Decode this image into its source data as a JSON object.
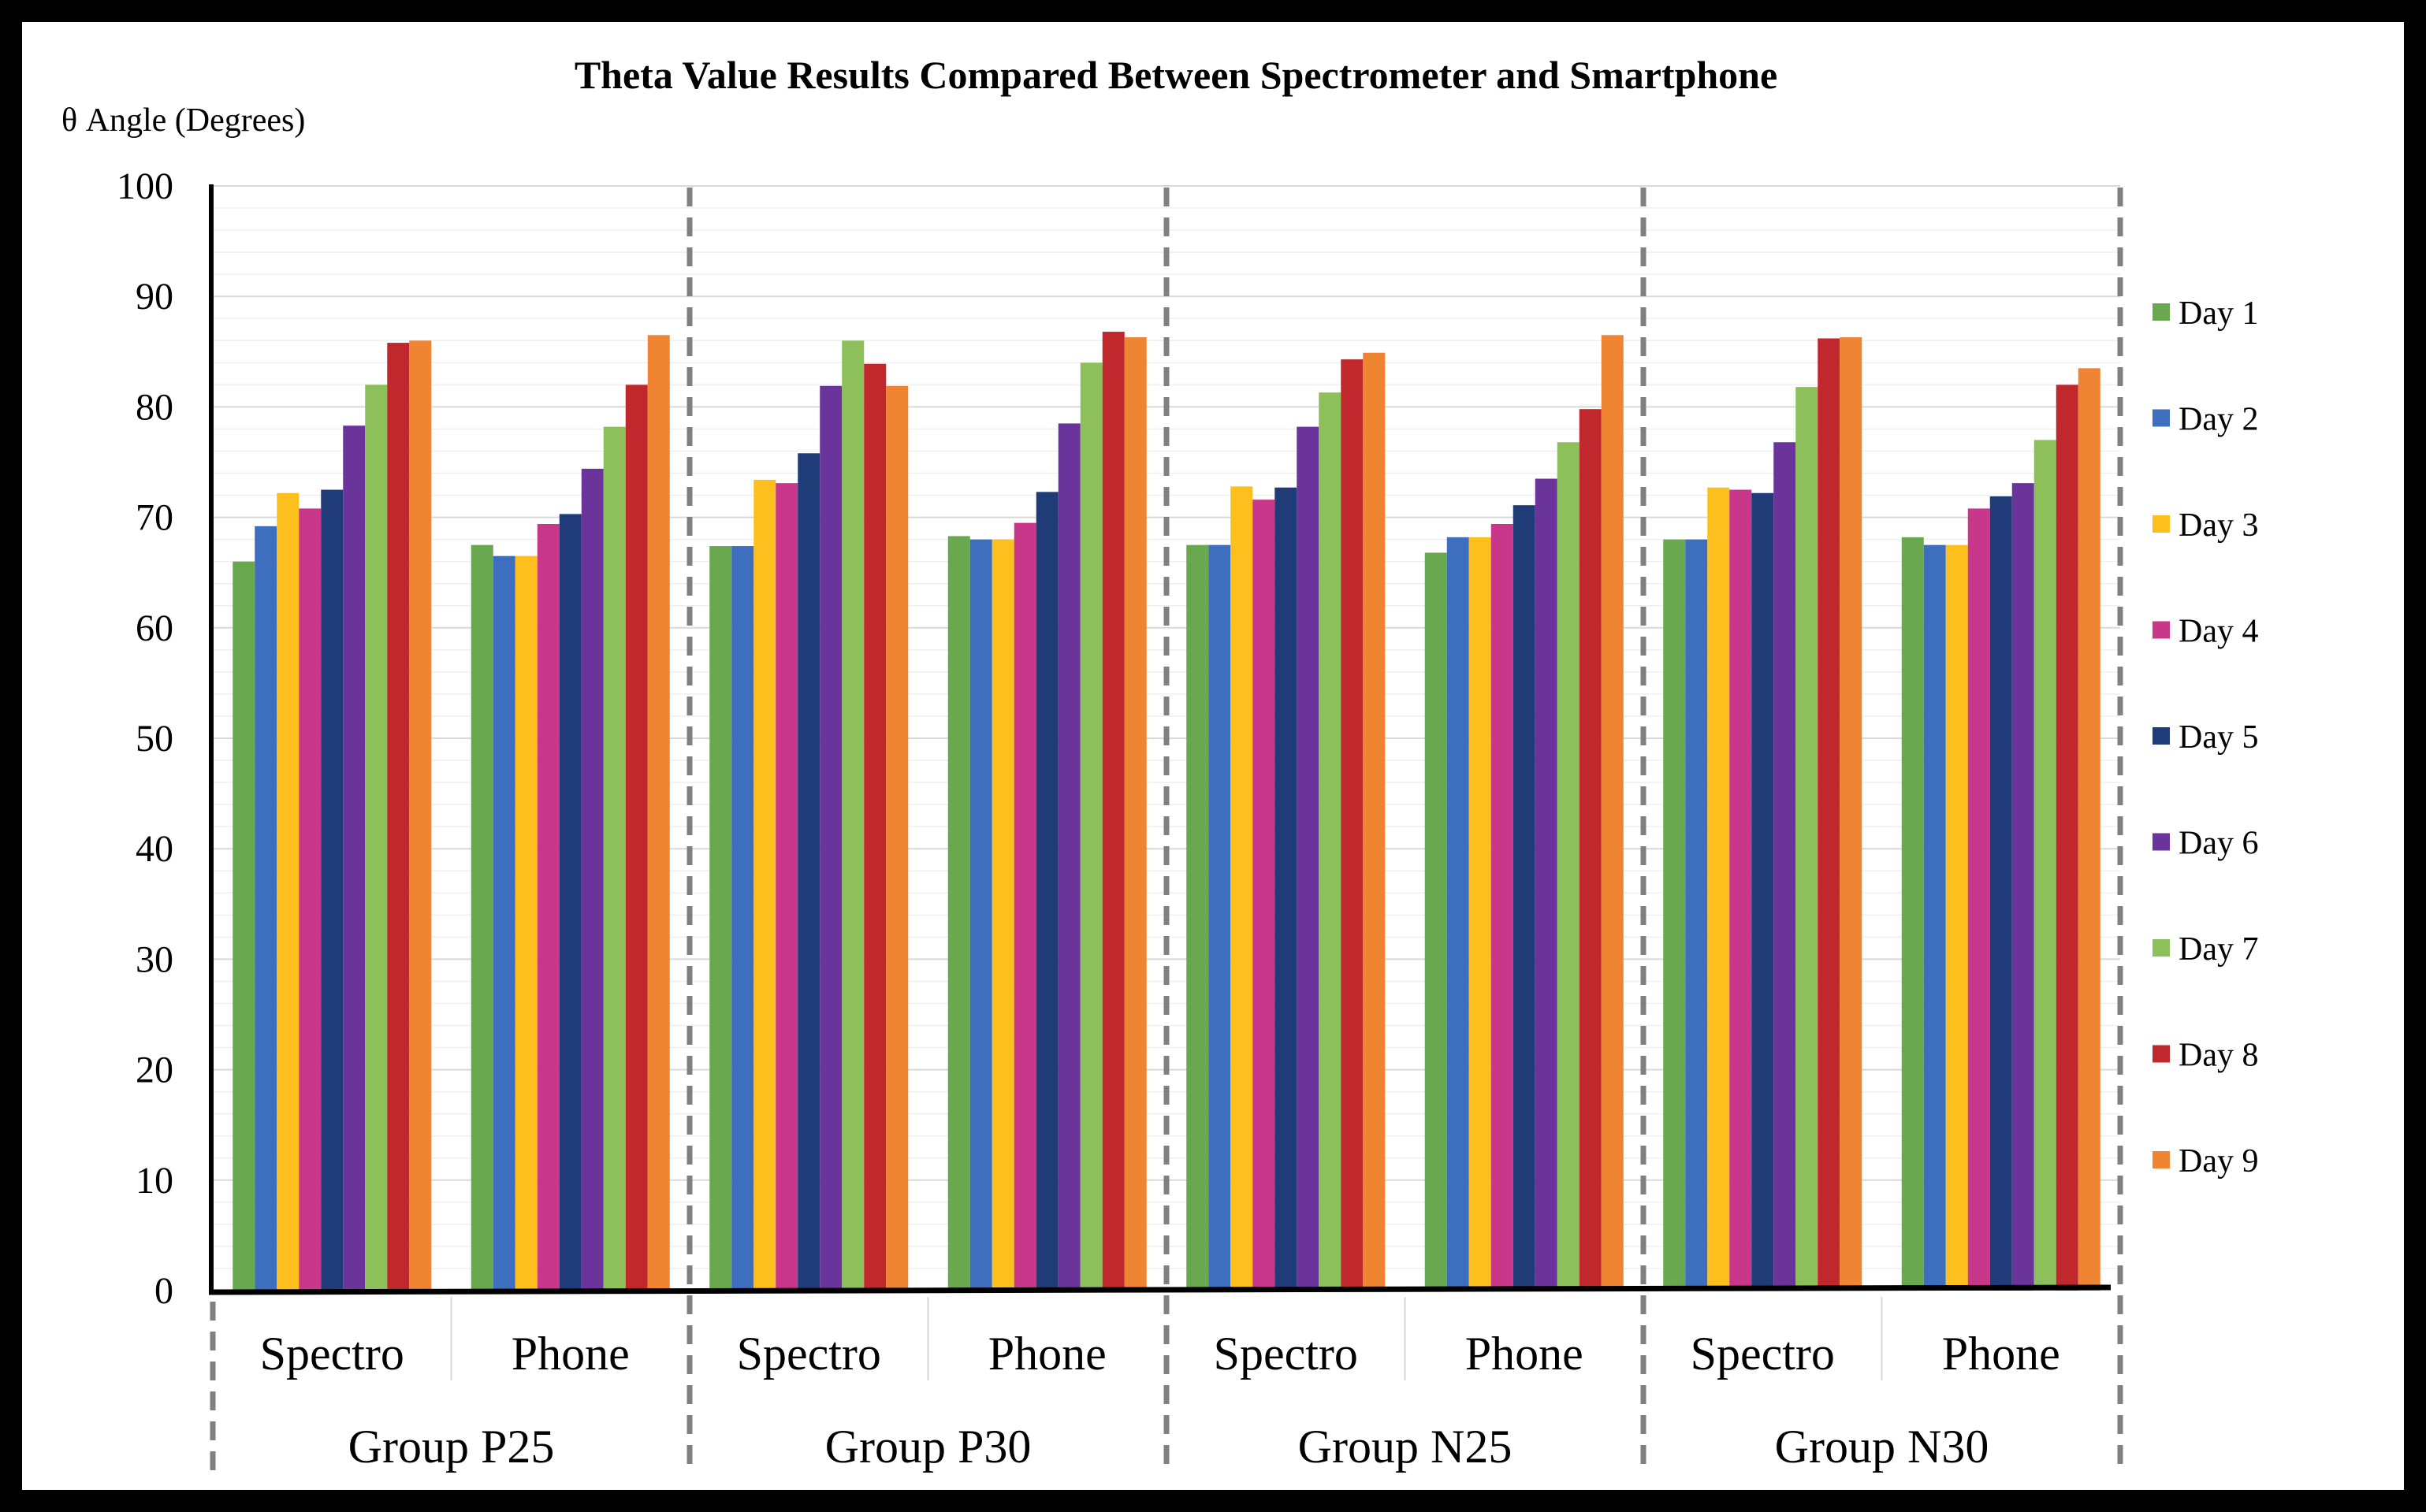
{
  "chart_data": {
    "type": "bar",
    "title": "Theta Value Results Compared Between Spectrometer and Smartphone",
    "ylabel": "θ Angle (Degrees)",
    "xlabel": "",
    "ylim": [
      0,
      100
    ],
    "yticks": [
      "0",
      "10",
      "20",
      "30",
      "40",
      "50",
      "60",
      "70",
      "80",
      "90",
      "100"
    ],
    "grid": true,
    "legend_position": "right",
    "groups": [
      "Group P25",
      "Group P30",
      "Group N25",
      "Group N30"
    ],
    "categories": [
      "Spectro",
      "Phone",
      "Spectro",
      "Phone",
      "Spectro",
      "Phone",
      "Spectro",
      "Phone"
    ],
    "series": [
      {
        "name": "Day 1",
        "color": "#6aa84f",
        "values": [
          66.0,
          67.5,
          67.4,
          68.3,
          67.5,
          66.8,
          68.0,
          68.2
        ]
      },
      {
        "name": "Day 2",
        "color": "#3d6fbe",
        "values": [
          69.2,
          66.5,
          67.4,
          68.0,
          67.5,
          68.2,
          68.0,
          67.5
        ]
      },
      {
        "name": "Day 3",
        "color": "#fdbf1e",
        "values": [
          72.2,
          66.5,
          73.4,
          68.0,
          72.8,
          68.2,
          72.7,
          67.5
        ]
      },
      {
        "name": "Day 4",
        "color": "#c8378a",
        "values": [
          70.8,
          69.4,
          73.1,
          69.5,
          71.6,
          69.4,
          72.5,
          70.8
        ]
      },
      {
        "name": "Day 5",
        "color": "#1f3c78",
        "values": [
          72.5,
          70.3,
          75.8,
          72.3,
          72.7,
          71.1,
          72.2,
          71.9
        ]
      },
      {
        "name": "Day 6",
        "color": "#6b349a",
        "values": [
          78.3,
          74.4,
          81.9,
          78.5,
          78.2,
          73.5,
          76.8,
          73.1
        ]
      },
      {
        "name": "Day 7",
        "color": "#8dc05a",
        "values": [
          82.0,
          78.2,
          86.0,
          84.0,
          81.3,
          76.8,
          81.8,
          77.0
        ]
      },
      {
        "name": "Day 8",
        "color": "#c0282d",
        "values": [
          85.8,
          82.0,
          83.9,
          86.8,
          84.3,
          79.8,
          86.2,
          82.0
        ]
      },
      {
        "name": "Day 9",
        "color": "#ef8433",
        "values": [
          86.0,
          86.5,
          81.9,
          86.3,
          84.9,
          86.5,
          86.3,
          83.5
        ]
      }
    ]
  }
}
